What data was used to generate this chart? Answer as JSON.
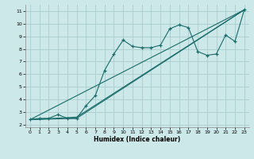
{
  "xlabel": "Humidex (Indice chaleur)",
  "xlim": [
    -0.5,
    23.5
  ],
  "ylim": [
    1.8,
    11.5
  ],
  "xticks": [
    0,
    1,
    2,
    3,
    4,
    5,
    6,
    7,
    8,
    9,
    10,
    11,
    12,
    13,
    14,
    15,
    16,
    17,
    18,
    19,
    20,
    21,
    22,
    23
  ],
  "yticks": [
    2,
    3,
    4,
    5,
    6,
    7,
    8,
    9,
    10,
    11
  ],
  "background_color": "#cce8e8",
  "grid_color": "#aacccc",
  "line_color": "#1a6b6b",
  "main_x": [
    0,
    1,
    2,
    3,
    4,
    5,
    6,
    7,
    8,
    9,
    10,
    11,
    12,
    13,
    14,
    15,
    16,
    17,
    18,
    19,
    20,
    21,
    22,
    23
  ],
  "main_y": [
    2.4,
    2.5,
    2.5,
    2.8,
    2.5,
    2.5,
    3.5,
    4.3,
    6.3,
    7.6,
    8.7,
    8.2,
    8.1,
    8.1,
    8.3,
    9.6,
    9.9,
    9.7,
    7.8,
    7.5,
    7.6,
    9.1,
    8.6,
    11.1
  ],
  "fan_lines": [
    {
      "x": [
        0,
        23
      ],
      "y": [
        2.4,
        11.1
      ]
    },
    {
      "x": [
        0,
        5,
        23
      ],
      "y": [
        2.4,
        2.5,
        11.1
      ]
    },
    {
      "x": [
        0,
        5,
        23
      ],
      "y": [
        2.4,
        2.6,
        11.1
      ]
    }
  ]
}
